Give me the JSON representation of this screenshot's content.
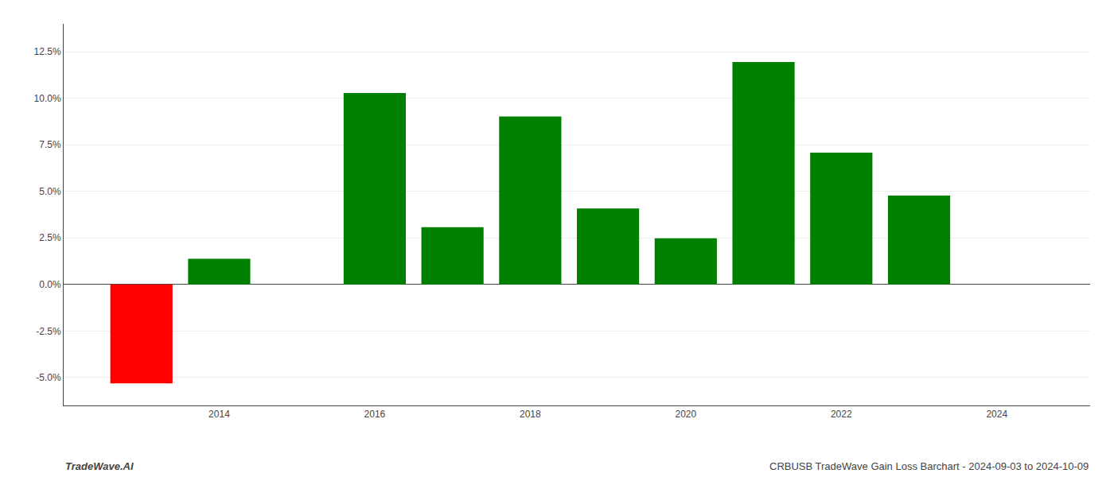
{
  "chart_data": {
    "type": "bar",
    "x": [
      2013,
      2014,
      2016,
      2017,
      2018,
      2019,
      2020,
      2021,
      2022,
      2023
    ],
    "values": [
      -5.32,
      1.38,
      10.28,
      3.08,
      9.02,
      4.08,
      2.48,
      11.95,
      7.08,
      4.78
    ],
    "colors": [
      "#ff0000",
      "#008000",
      "#008000",
      "#008000",
      "#008000",
      "#008000",
      "#008000",
      "#008000",
      "#008000",
      "#008000"
    ],
    "xlim": [
      2012.0,
      2025.2
    ],
    "xticks": [
      2014,
      2016,
      2018,
      2020,
      2022,
      2024
    ],
    "ylim": [
      -6.5,
      14.0
    ],
    "yticks": [
      {
        "value": -5.0,
        "label": "-5.0%"
      },
      {
        "value": -2.5,
        "label": "-2.5%"
      },
      {
        "value": 0.0,
        "label": "0.0%"
      },
      {
        "value": 2.5,
        "label": "2.5%"
      },
      {
        "value": 5.0,
        "label": "5.0%"
      },
      {
        "value": 7.5,
        "label": "7.5%"
      },
      {
        "value": 10.0,
        "label": "10.0%"
      },
      {
        "value": 12.5,
        "label": "12.5%"
      }
    ],
    "grid": true,
    "annotations": [
      "TradeWave.AI",
      "CRBUSB TradeWave Gain Loss Barchart - 2024-09-03 to 2024-10-09"
    ]
  }
}
